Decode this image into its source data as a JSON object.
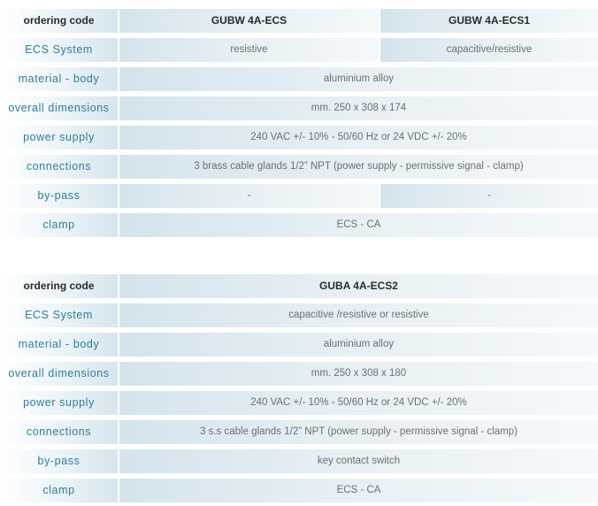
{
  "table1": {
    "header": {
      "label": "ordering code",
      "col1": "GUBW 4A-ECS",
      "col2": "GUBW 4A-ECS1"
    },
    "rows": [
      {
        "label": "ECS System",
        "col1": "resistive",
        "col2": "capacitive/resistive"
      },
      {
        "label": "material - body",
        "value": "aluminium alloy"
      },
      {
        "label": "overall dimensions",
        "value": "mm. 250 x 308 x 174"
      },
      {
        "label": "power supply",
        "value": "240 VAC +/- 10% - 50/60 Hz  or 24 VDC +/- 20%"
      },
      {
        "label": "connections",
        "value": "3 brass cable glands 1/2” NPT  (power supply - permissive signal - clamp)"
      },
      {
        "label": "by-pass",
        "col1": "-",
        "col2": "-"
      },
      {
        "label": "clamp",
        "value": "ECS - CA"
      }
    ]
  },
  "table2": {
    "header": {
      "label": "ordering code",
      "value": "GUBA 4A-ECS2"
    },
    "rows": [
      {
        "label": "ECS System",
        "value": "capacitive /resistive or resistive"
      },
      {
        "label": "material - body",
        "value": "aluminium alloy"
      },
      {
        "label": "overall dimensions",
        "value": "mm. 250 x 308 x 180"
      },
      {
        "label": "power supply",
        "value": "240 VAC +/- 10% - 50/60 Hz  or 24 VDC +/- 20%"
      },
      {
        "label": "connections",
        "value": "3 s.s cable glands 1/2” NPT  (power supply - permissive signal - clamp)"
      },
      {
        "label": "by-pass",
        "value": "key contact switch"
      },
      {
        "label": "clamp",
        "value": "ECS - CA"
      }
    ]
  }
}
